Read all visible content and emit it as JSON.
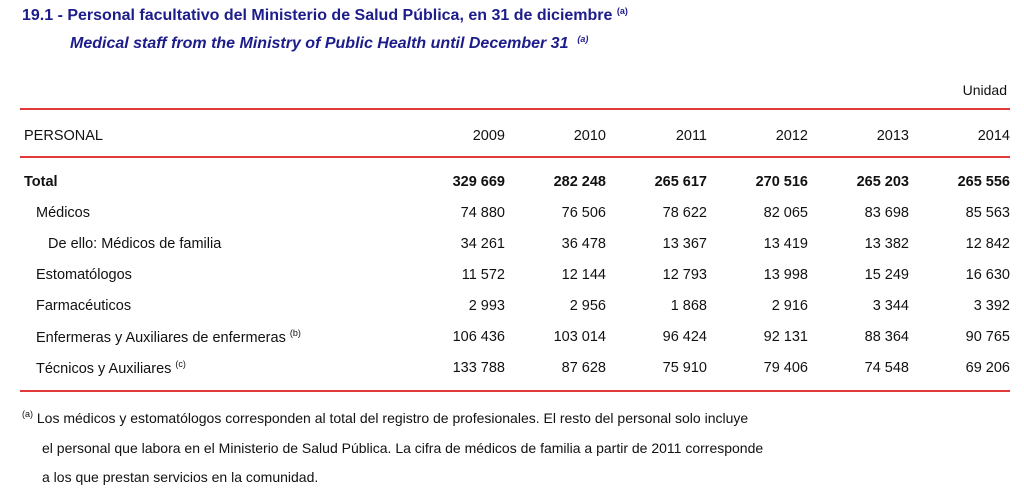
{
  "title": {
    "text": "19.1 - Personal facultativo del Ministerio de Salud Pública, en 31 de diciembre",
    "note": "(a)"
  },
  "subtitle": {
    "text": "Medical staff from the Ministry of Public Health until December 31",
    "note": "(a)"
  },
  "unit": "Unidad",
  "table": {
    "headers": [
      "PERSONAL",
      "2009",
      "2010",
      "2011",
      "2012",
      "2013",
      "2014"
    ],
    "rows": [
      {
        "label": "Total",
        "note": "",
        "values": [
          "329 669",
          "282 248",
          "265 617",
          "270 516",
          "265 203",
          "265 556"
        ]
      },
      {
        "label": "Médicos",
        "note": "",
        "values": [
          "74 880",
          "76 506",
          "78 622",
          "82 065",
          "83 698",
          "85 563"
        ]
      },
      {
        "label": "De ello: Médicos de familia",
        "note": "",
        "values": [
          "34 261",
          "36 478",
          "13 367",
          "13 419",
          "13 382",
          "12 842"
        ]
      },
      {
        "label": "Estomatólogos",
        "note": "",
        "values": [
          "11 572",
          "12 144",
          "12 793",
          "13 998",
          "15 249",
          "16 630"
        ]
      },
      {
        "label": "Farmacéuticos",
        "note": "",
        "values": [
          "2 993",
          "2 956",
          "1 868",
          "2 916",
          "3 344",
          "3 392"
        ]
      },
      {
        "label": "Enfermeras y Auxiliares de enfermeras",
        "note": "(b)",
        "values": [
          "106 436",
          "103 014",
          "96 424",
          "92 131",
          "88 364",
          "90 765"
        ]
      },
      {
        "label": "Técnicos y Auxiliares",
        "note": "(c)",
        "values": [
          "133 788",
          "87 628",
          "75 910",
          "79 406",
          "74 548",
          "69 206"
        ]
      }
    ]
  },
  "footnote": {
    "marker": "(a)",
    "lines": [
      "Los médicos y estomatólogos corresponden al total del registro de profesionales. El resto del  personal  solo incluye",
      "el personal que labora en el Ministerio de  Salud  Pública.  La cifra de médicos de familia a partir de 2011 corresponde",
      "a los que prestan servicios en la comunidad."
    ]
  },
  "colors": {
    "title": "#1c1c8a",
    "rule": "#e23a3a"
  }
}
